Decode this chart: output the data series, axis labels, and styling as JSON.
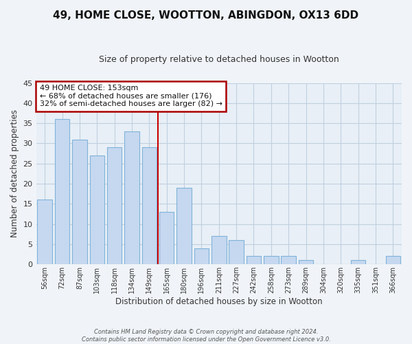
{
  "title": "49, HOME CLOSE, WOOTTON, ABINGDON, OX13 6DD",
  "subtitle": "Size of property relative to detached houses in Wootton",
  "xlabel": "Distribution of detached houses by size in Wootton",
  "ylabel": "Number of detached properties",
  "categories": [
    "56sqm",
    "72sqm",
    "87sqm",
    "103sqm",
    "118sqm",
    "134sqm",
    "149sqm",
    "165sqm",
    "180sqm",
    "196sqm",
    "211sqm",
    "227sqm",
    "242sqm",
    "258sqm",
    "273sqm",
    "289sqm",
    "304sqm",
    "320sqm",
    "335sqm",
    "351sqm",
    "366sqm"
  ],
  "values": [
    16,
    36,
    31,
    27,
    29,
    33,
    29,
    13,
    19,
    4,
    7,
    6,
    2,
    2,
    2,
    1,
    0,
    0,
    1,
    0,
    2
  ],
  "bar_color": "#c5d8f0",
  "bar_edge_color": "#7fb3d9",
  "highlight_index": 6,
  "highlight_line_color": "#cc0000",
  "ylim": [
    0,
    45
  ],
  "yticks": [
    0,
    5,
    10,
    15,
    20,
    25,
    30,
    35,
    40,
    45
  ],
  "annotation_title": "49 HOME CLOSE: 153sqm",
  "annotation_line1": "← 68% of detached houses are smaller (176)",
  "annotation_line2": "32% of semi-detached houses are larger (82) →",
  "annotation_box_edge": "#aa0000",
  "footnote1": "Contains HM Land Registry data © Crown copyright and database right 2024.",
  "footnote2": "Contains public sector information licensed under the Open Government Licence v3.0.",
  "background_color": "#f0f4f8",
  "plot_bg_color": "#e8eff6",
  "grid_color": "#c0cfe0"
}
